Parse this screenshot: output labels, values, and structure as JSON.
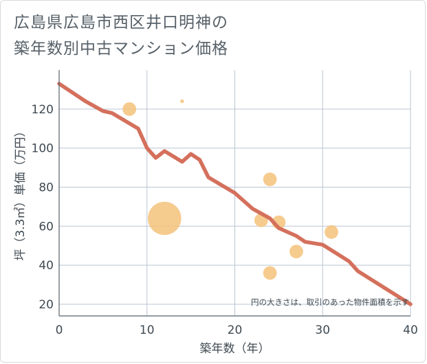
{
  "chart_data": {
    "type": "scatter",
    "title": "広島県広島市西区井口明神の築年数別中古マンション価格",
    "title_lines": [
      "広島県広島市西区井口明神の",
      "築年数別中古マンション価格"
    ],
    "xlabel": "築年数（年）",
    "ylabel": "坪（3.3㎡）単価（万円）",
    "xlim": [
      0,
      40
    ],
    "ylim": [
      14,
      140
    ],
    "xticks": [
      0,
      10,
      20,
      30,
      40
    ],
    "yticks": [
      20,
      40,
      60,
      80,
      100,
      120
    ],
    "grid": true,
    "annotation": "円の大きさは、取引のあった物件面積を示す",
    "trend_line": {
      "name": "trend",
      "color": "#d4705c",
      "x": [
        0,
        3,
        5,
        6,
        9,
        10,
        11,
        12,
        14,
        15,
        16,
        17,
        20,
        22,
        24,
        25,
        27,
        28,
        30,
        33,
        34,
        40
      ],
      "y": [
        133,
        124,
        119,
        118,
        110,
        100,
        95,
        98.5,
        93,
        97,
        94,
        85,
        77,
        69,
        64,
        59,
        55,
        52,
        50.5,
        42,
        37,
        20
      ]
    },
    "bubbles": {
      "name": "transactions",
      "color": "#f5c27a",
      "points": [
        {
          "x": 8,
          "y": 120,
          "size": 2
        },
        {
          "x": 14,
          "y": 124,
          "size": 0.15
        },
        {
          "x": 12,
          "y": 64,
          "size": 12
        },
        {
          "x": 23,
          "y": 63,
          "size": 2
        },
        {
          "x": 24,
          "y": 84,
          "size": 2
        },
        {
          "x": 25,
          "y": 62,
          "size": 2
        },
        {
          "x": 24,
          "y": 36,
          "size": 2
        },
        {
          "x": 27,
          "y": 47,
          "size": 2
        },
        {
          "x": 31,
          "y": 57,
          "size": 2
        }
      ]
    }
  }
}
